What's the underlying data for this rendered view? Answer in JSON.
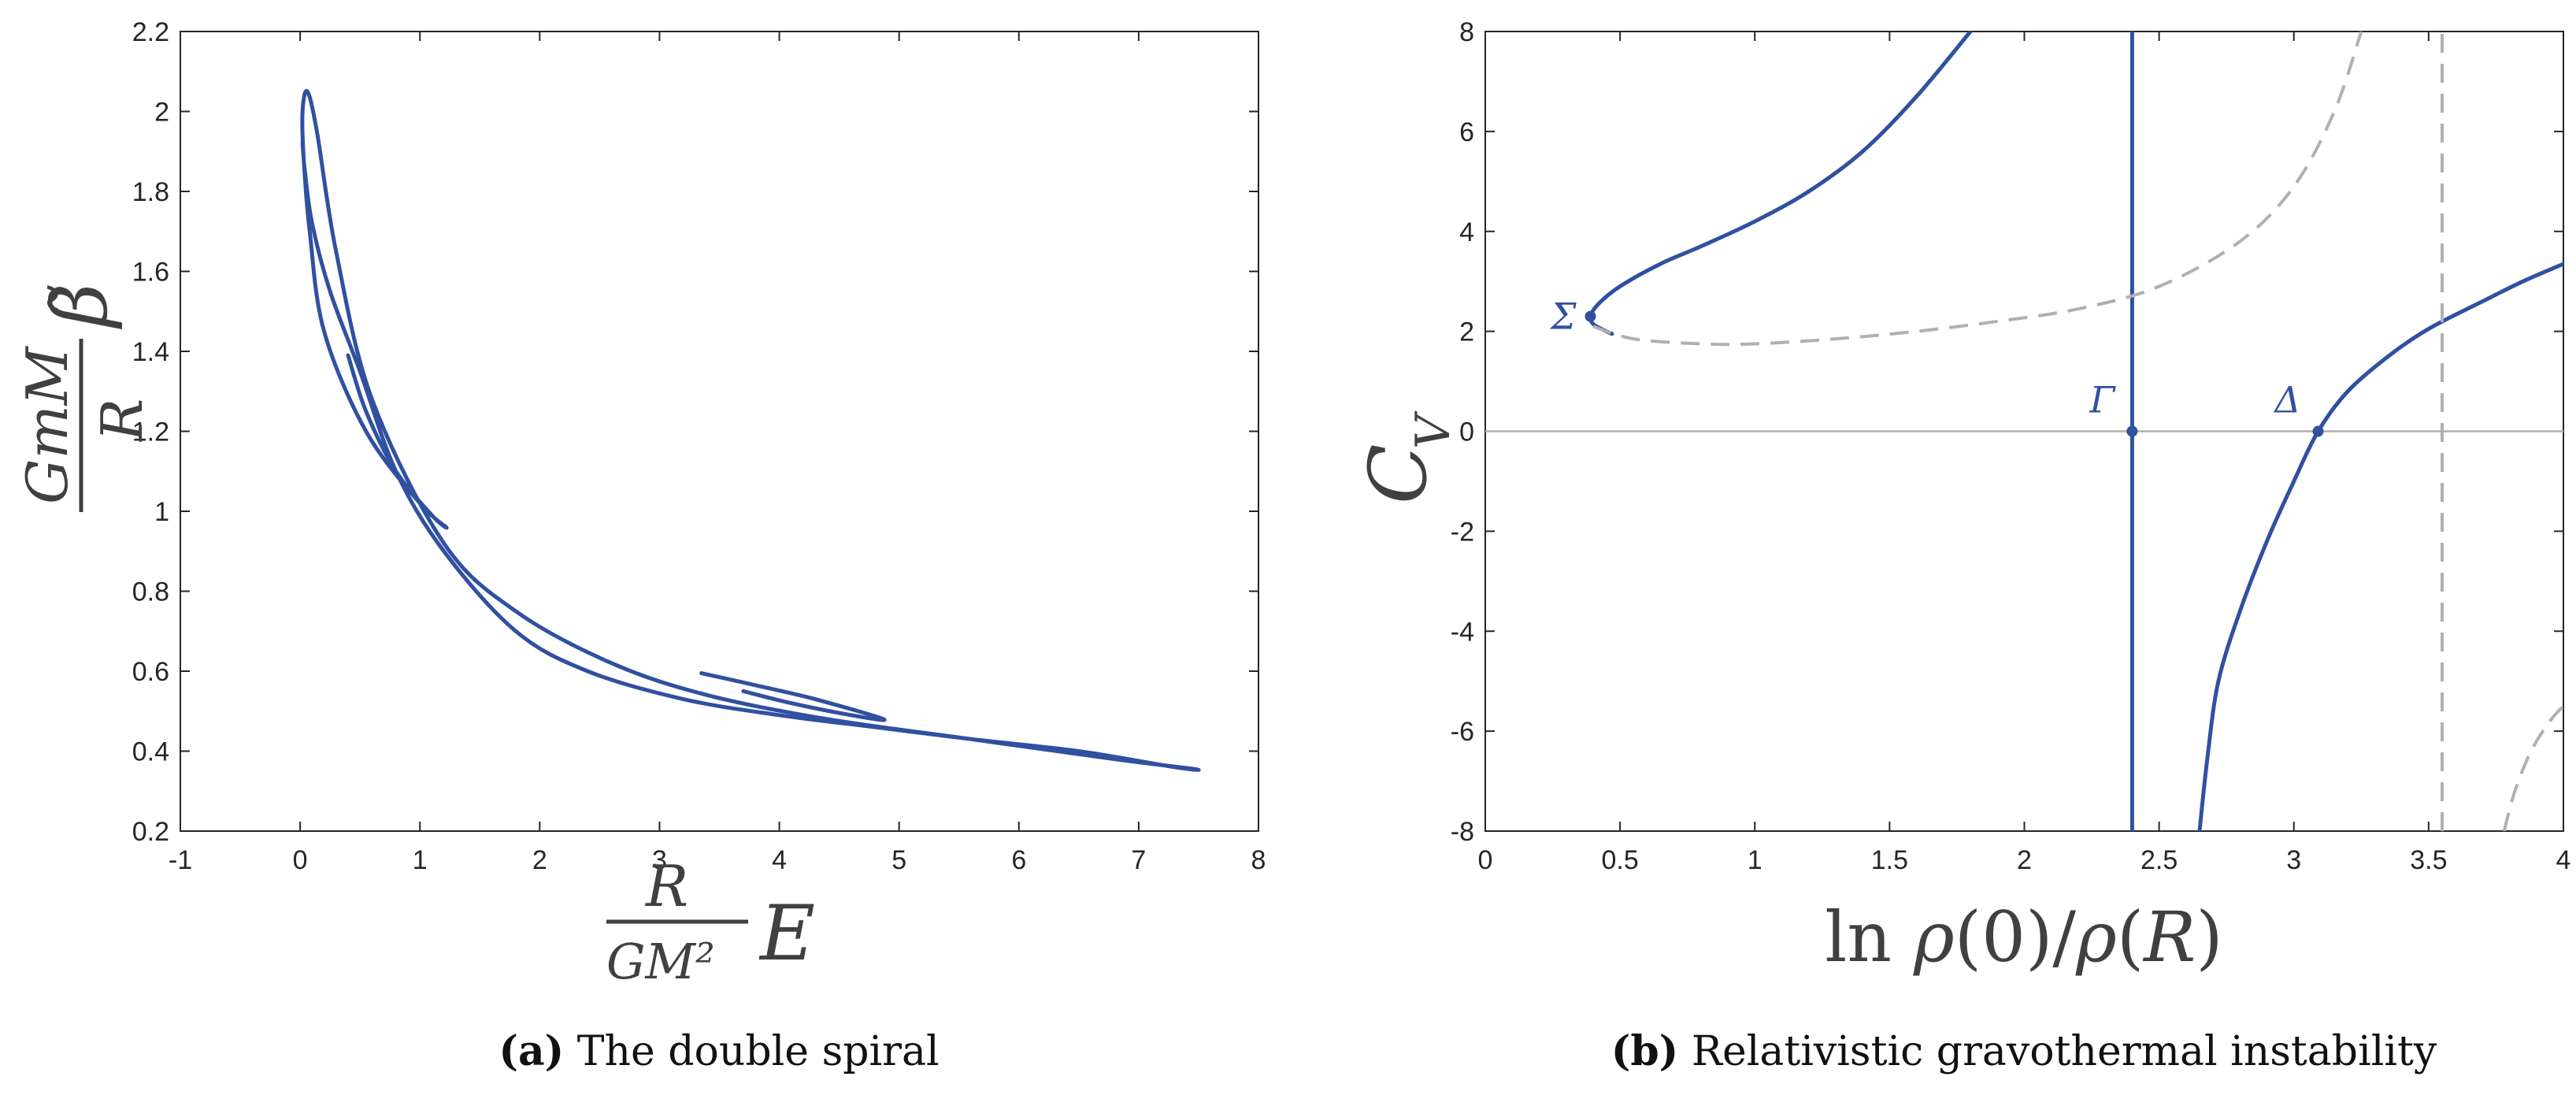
{
  "chart_data": [
    {
      "id": "a",
      "type": "line",
      "title": "",
      "xlabel": "R/(GM^2) E",
      "ylabel": "GmM/R β̃",
      "xlim": [
        -1,
        8
      ],
      "ylim": [
        0.2,
        2.2
      ],
      "xticks": [
        "-1",
        "0",
        "1",
        "2",
        "3",
        "4",
        "5",
        "6",
        "7",
        "8"
      ],
      "yticks": [
        "0.2",
        "0.4",
        "0.6",
        "0.8",
        "1",
        "1.2",
        "1.4",
        "1.6",
        "1.8",
        "2",
        "2.2"
      ],
      "series": [
        {
          "name": "double spiral",
          "x": [
            0.4,
            0.55,
            0.8,
            1.1,
            1.22,
            1.0,
            0.55,
            0.2,
            0.08,
            0.03,
            0.02,
            0.06,
            0.14,
            0.3,
            0.6,
            1.2,
            1.8,
            2.6,
            3.4,
            4.4,
            5.6,
            6.8,
            7.47,
            7.3,
            6.5,
            5.6,
            4.8,
            4.0,
            3.2,
            2.4,
            1.8,
            1.2,
            0.8,
            0.5,
            0.25,
            0.1,
            0.04,
            0.02
          ],
          "y": [
            1.39,
            1.25,
            1.1,
            0.99,
            0.96,
            1.02,
            1.2,
            1.45,
            1.7,
            1.88,
            2.0,
            2.05,
            1.95,
            1.65,
            1.28,
            0.92,
            0.75,
            0.62,
            0.54,
            0.48,
            0.43,
            0.38,
            0.355,
            0.36,
            0.4,
            0.43,
            0.46,
            0.49,
            0.53,
            0.6,
            0.7,
            0.9,
            1.1,
            1.35,
            1.55,
            1.72,
            1.85,
            1.92
          ]
        },
        {
          "name": "inner spiral (right)",
          "x": [
            3.35,
            3.8,
            4.3,
            4.87,
            4.6,
            4.1,
            3.7
          ],
          "y": [
            0.595,
            0.565,
            0.53,
            0.48,
            0.49,
            0.52,
            0.55
          ]
        }
      ],
      "caption_label": "(a)",
      "caption": "The double spiral"
    },
    {
      "id": "b",
      "type": "line",
      "title": "",
      "xlabel": "ln ρ(0)/ρ(R)",
      "ylabel": "C_V",
      "xlim": [
        0,
        4
      ],
      "ylim": [
        -8,
        8
      ],
      "xticks": [
        "0",
        "0.5",
        "1",
        "1.5",
        "2",
        "2.5",
        "3",
        "3.5",
        "4"
      ],
      "yticks": [
        "-8",
        "-6",
        "-4",
        "-2",
        "0",
        "2",
        "4",
        "6",
        "8"
      ],
      "series": [
        {
          "name": "branch Σ upper",
          "style": "solid",
          "x": [
            0.47,
            0.43,
            0.4,
            0.39,
            0.42,
            0.5,
            0.65,
            0.8,
            1.0,
            1.2,
            1.4,
            1.6,
            1.8
          ],
          "y": [
            1.95,
            2.05,
            2.15,
            2.3,
            2.55,
            2.9,
            3.35,
            3.7,
            4.2,
            4.8,
            5.6,
            6.7,
            8.0
          ]
        },
        {
          "name": "vertical at Γ",
          "style": "solid",
          "x": [
            2.4,
            2.4
          ],
          "y": [
            -8,
            8
          ]
        },
        {
          "name": "branch Δ",
          "style": "solid",
          "x": [
            2.65,
            2.68,
            2.72,
            2.8,
            2.9,
            3.0,
            3.09,
            3.2,
            3.35,
            3.5,
            3.7,
            3.85,
            4.0
          ],
          "y": [
            -8.0,
            -6.5,
            -5.0,
            -3.6,
            -2.2,
            -1.0,
            0.0,
            0.8,
            1.5,
            2.05,
            2.6,
            3.0,
            3.35
          ]
        },
        {
          "name": "dashed curve upper",
          "style": "dashed",
          "x": [
            0.4,
            0.55,
            0.8,
            1.0,
            1.3,
            1.6,
            1.9,
            2.2,
            2.5,
            2.8,
            3.0,
            3.15,
            3.25
          ],
          "y": [
            2.1,
            1.85,
            1.75,
            1.75,
            1.85,
            2.0,
            2.2,
            2.45,
            2.9,
            3.8,
            4.9,
            6.4,
            8.0
          ]
        },
        {
          "name": "dashed asymptote",
          "style": "dashed",
          "x": [
            3.55,
            3.55
          ],
          "y": [
            -8,
            8
          ]
        },
        {
          "name": "dashed curve lower",
          "style": "dashed",
          "x": [
            3.78,
            3.82,
            3.88,
            3.95,
            4.0
          ],
          "y": [
            -8.0,
            -7.2,
            -6.4,
            -5.8,
            -5.5
          ]
        }
      ],
      "points": [
        {
          "label": "Σ",
          "x": 0.39,
          "y": 2.3
        },
        {
          "label": "Γ",
          "x": 2.4,
          "y": 0.0
        },
        {
          "label": "Δ",
          "x": 3.09,
          "y": 0.0
        }
      ],
      "caption_label": "(b)",
      "caption": "Relativistic gravothermal instability"
    }
  ],
  "colors": {
    "series": "#3050a0",
    "dashed": "#b0b0b0",
    "axis": "#262626"
  }
}
